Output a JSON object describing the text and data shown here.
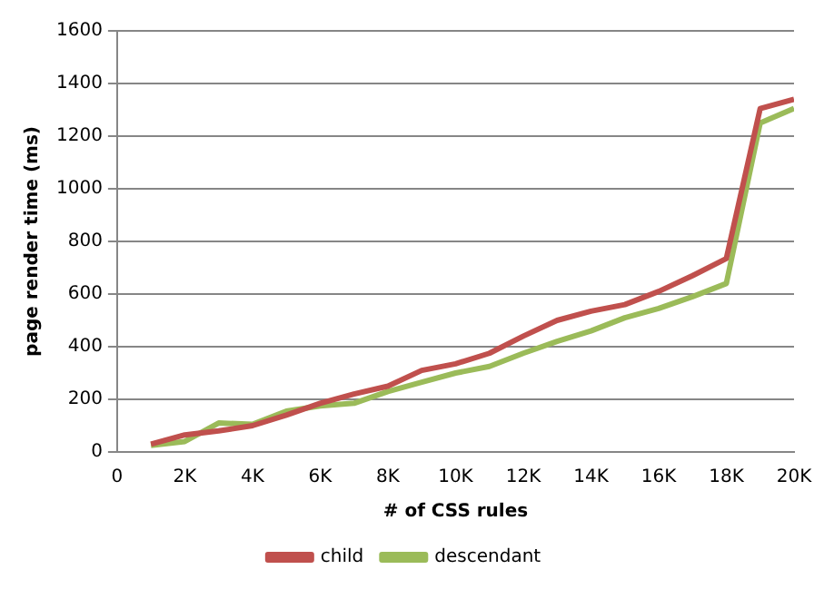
{
  "chart_data": {
    "type": "line",
    "xlabel": "# of CSS rules",
    "ylabel": "page render time (ms)",
    "x": [
      1000,
      2000,
      3000,
      4000,
      5000,
      6000,
      7000,
      8000,
      9000,
      10000,
      11000,
      12000,
      13000,
      14000,
      15000,
      16000,
      17000,
      18000,
      19000,
      20000
    ],
    "series": [
      {
        "name": "child",
        "color": "#c0504d",
        "values": [
          30,
          65,
          80,
          100,
          140,
          185,
          220,
          250,
          310,
          335,
          375,
          440,
          500,
          535,
          560,
          610,
          670,
          735,
          1305,
          1340
        ]
      },
      {
        "name": "descendant",
        "color": "#9bbb59",
        "values": [
          25,
          40,
          110,
          105,
          155,
          175,
          185,
          230,
          265,
          300,
          325,
          375,
          420,
          460,
          510,
          545,
          590,
          640,
          1250,
          1305
        ]
      }
    ],
    "xlim": [
      0,
      20000
    ],
    "xticks": [
      {
        "value": 0,
        "label": "0"
      },
      {
        "value": 2000,
        "label": "2K"
      },
      {
        "value": 4000,
        "label": "4K"
      },
      {
        "value": 6000,
        "label": "6K"
      },
      {
        "value": 8000,
        "label": "8K"
      },
      {
        "value": 10000,
        "label": "10K"
      },
      {
        "value": 12000,
        "label": "12K"
      },
      {
        "value": 14000,
        "label": "14K"
      },
      {
        "value": 16000,
        "label": "16K"
      },
      {
        "value": 18000,
        "label": "18K"
      },
      {
        "value": 20000,
        "label": "20K"
      }
    ],
    "ylim": [
      0,
      1600
    ],
    "yticks": [
      0,
      200,
      400,
      600,
      800,
      1000,
      1200,
      1400,
      1600
    ],
    "grid": "y",
    "legend": "bottom",
    "marker": "none",
    "line_style": "solid"
  }
}
